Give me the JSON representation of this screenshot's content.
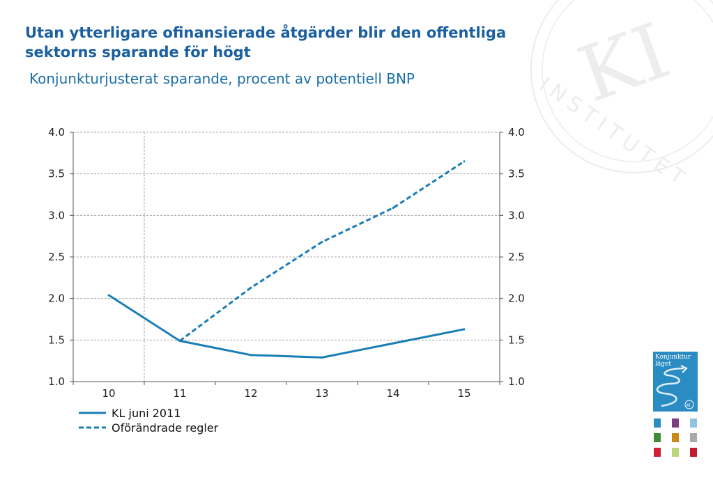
{
  "page": {
    "title": "Utan ytterligare ofinansierade åtgärder blir den offentliga sektorns sparande för högt",
    "subtitle": "Konjunkturjusterat sparande, procent av potentiell BNP"
  },
  "watermark": {
    "text": "INSTITUTET",
    "monogram": "KI"
  },
  "report_cover": {
    "title_line1": "Konjunktur",
    "title_line2": "läget",
    "badge": "KI"
  },
  "thumbnail_colors": [
    "#2a8cc3",
    "#7b3f7f",
    "#8fc3e0",
    "#3d8c3a",
    "#c98a18",
    "#a9a9a9",
    "#d0203a",
    "#b7d97a",
    "#c21a2e"
  ],
  "chart_data": {
    "type": "line",
    "title": "",
    "xlabel": "",
    "ylabel": "",
    "categories": [
      "10",
      "11",
      "12",
      "13",
      "14",
      "15"
    ],
    "ylim": [
      1.0,
      4.0
    ],
    "yticks": [
      "1.0",
      "1.5",
      "2.0",
      "2.5",
      "3.0",
      "3.5",
      "4.0"
    ],
    "right_axis": true,
    "grid": true,
    "forecast_divider_after": "10",
    "legend_position": "bottom-left",
    "series": [
      {
        "name": "KL juni 2011",
        "style": "solid",
        "color": "#1b7db5",
        "x": [
          "10",
          "11",
          "12",
          "13",
          "14",
          "15"
        ],
        "values": [
          2.04,
          1.49,
          1.32,
          1.29,
          1.46,
          1.63
        ]
      },
      {
        "name": "Oförändrade regler",
        "style": "dashed",
        "color": "#1b7db5",
        "x": [
          "11",
          "12",
          "13",
          "14",
          "15"
        ],
        "values": [
          1.49,
          2.13,
          2.68,
          3.09,
          3.65
        ]
      }
    ]
  }
}
